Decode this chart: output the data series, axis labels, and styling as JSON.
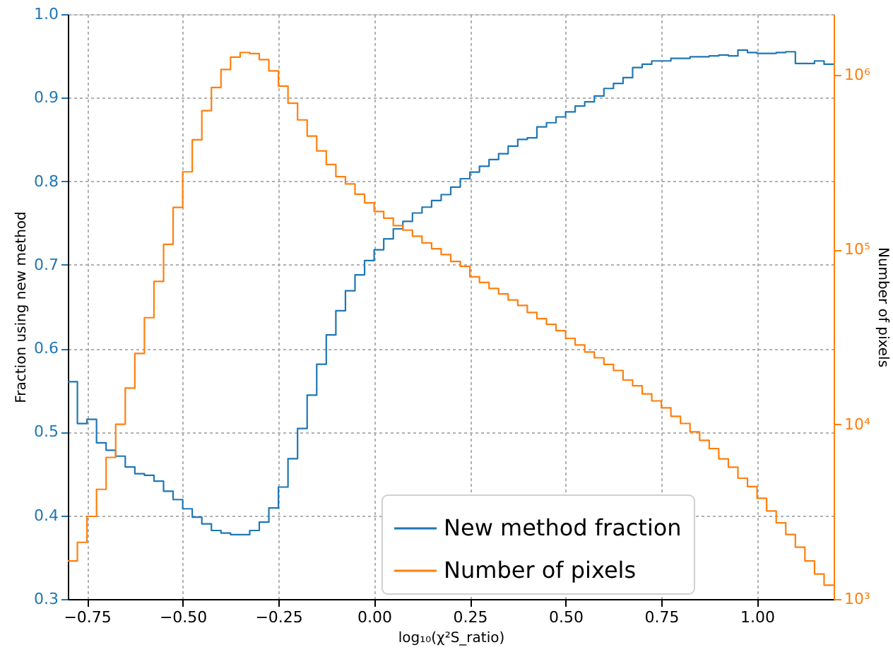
{
  "chart_data": {
    "type": "histogram",
    "xlabel": "log₁₀(χ²S_ratio)",
    "ylabel": "Fraction using new method",
    "y2label": "Number of pixels",
    "bins": [
      -0.8,
      -0.775,
      -0.75,
      -0.725,
      -0.7,
      -0.675,
      -0.65,
      -0.625,
      -0.6,
      -0.575,
      -0.55,
      -0.525,
      -0.5,
      -0.475,
      -0.45,
      -0.425,
      -0.4,
      -0.375,
      -0.35,
      -0.325,
      -0.3,
      -0.275,
      -0.25,
      -0.225,
      -0.2,
      -0.175,
      -0.15,
      -0.125,
      -0.1,
      -0.075,
      -0.05,
      -0.025,
      0,
      0.025,
      0.05,
      0.075,
      0.1,
      0.125,
      0.15,
      0.175,
      0.2,
      0.225,
      0.25,
      0.275,
      0.3,
      0.325,
      0.35,
      0.375,
      0.4,
      0.425,
      0.45,
      0.475,
      0.5,
      0.525,
      0.55,
      0.575,
      0.6,
      0.625,
      0.65,
      0.675,
      0.7,
      0.725,
      0.75,
      0.775,
      0.8,
      0.825,
      0.85,
      0.875,
      0.9,
      0.925,
      0.95,
      0.975,
      1.0,
      1.025,
      1.05,
      1.075,
      1.1,
      1.125,
      1.15,
      1.175,
      1.2
    ],
    "series": [
      {
        "name": "New method fraction",
        "color": "#1f77b4",
        "axis": "y",
        "values": [
          0.56,
          0.51,
          0.515,
          0.487,
          0.478,
          0.471,
          0.458,
          0.45,
          0.448,
          0.441,
          0.429,
          0.419,
          0.408,
          0.398,
          0.39,
          0.382,
          0.379,
          0.377,
          0.377,
          0.382,
          0.392,
          0.409,
          0.434,
          0.468,
          0.504,
          0.544,
          0.581,
          0.616,
          0.645,
          0.669,
          0.688,
          0.705,
          0.718,
          0.731,
          0.743,
          0.752,
          0.762,
          0.769,
          0.777,
          0.784,
          0.793,
          0.803,
          0.811,
          0.818,
          0.826,
          0.833,
          0.842,
          0.85,
          0.852,
          0.865,
          0.87,
          0.877,
          0.883,
          0.89,
          0.895,
          0.902,
          0.911,
          0.917,
          0.924,
          0.936,
          0.94,
          0.944,
          0.944,
          0.947,
          0.947,
          0.949,
          0.949,
          0.95,
          0.951,
          0.95,
          0.957,
          0.954,
          0.953,
          0.953,
          0.954,
          0.955,
          0.941,
          0.941,
          0.944,
          0.94
        ]
      },
      {
        "name": "Number of pixels",
        "color": "#ff7f0e",
        "axis": "y2",
        "values": [
          1650,
          2110,
          2970,
          4240,
          6460,
          10000,
          16100,
          25400,
          40700,
          65600,
          107000,
          174000,
          278000,
          424000,
          622000,
          845000,
          1070000,
          1260000,
          1340000,
          1320000,
          1220000,
          1050000,
          861000,
          687000,
          551000,
          445000,
          366000,
          306000,
          261000,
          237000,
          207000,
          185000,
          165000,
          151000,
          137000,
          129000,
          119000,
          109000,
          101000,
          93500,
          85300,
          80000,
          69700,
          64700,
          59800,
          55600,
          51400,
          47800,
          43600,
          40200,
          37300,
          34300,
          31000,
          28400,
          25900,
          24000,
          22000,
          20300,
          17900,
          16600,
          14900,
          13600,
          12400,
          11100,
          10100,
          9040,
          8090,
          7260,
          6340,
          5680,
          4910,
          4400,
          3770,
          3190,
          2730,
          2340,
          1980,
          1650,
          1390,
          1200
        ]
      }
    ],
    "xlim": [
      -0.8,
      1.2
    ],
    "xticks": [
      {
        "value": -0.75,
        "label": "−0.75"
      },
      {
        "value": -0.5,
        "label": "−0.50"
      },
      {
        "value": -0.25,
        "label": "−0.25"
      },
      {
        "value": 0,
        "label": "0.00"
      },
      {
        "value": 0.25,
        "label": "0.25"
      },
      {
        "value": 0.5,
        "label": "0.50"
      },
      {
        "value": 0.75,
        "label": "0.75"
      },
      {
        "value": 1,
        "label": "1.00"
      }
    ],
    "ylim": [
      0.3,
      1.0
    ],
    "yticks": [
      0.3,
      0.4,
      0.5,
      0.6,
      0.7,
      0.8,
      0.9,
      {
        "value": 1,
        "label": "1.0"
      }
    ],
    "y2lim": [
      1000,
      2220000
    ],
    "y2ticks": [
      {
        "value": 1000,
        "label": "10³"
      },
      {
        "value": 10000,
        "label": "10⁴"
      },
      {
        "value": 100000,
        "label": "10⁵"
      },
      {
        "value": 1000000,
        "label": "10⁶"
      }
    ],
    "log": "y2",
    "grid": true,
    "legend": "bottom",
    "line_style": "solid"
  }
}
